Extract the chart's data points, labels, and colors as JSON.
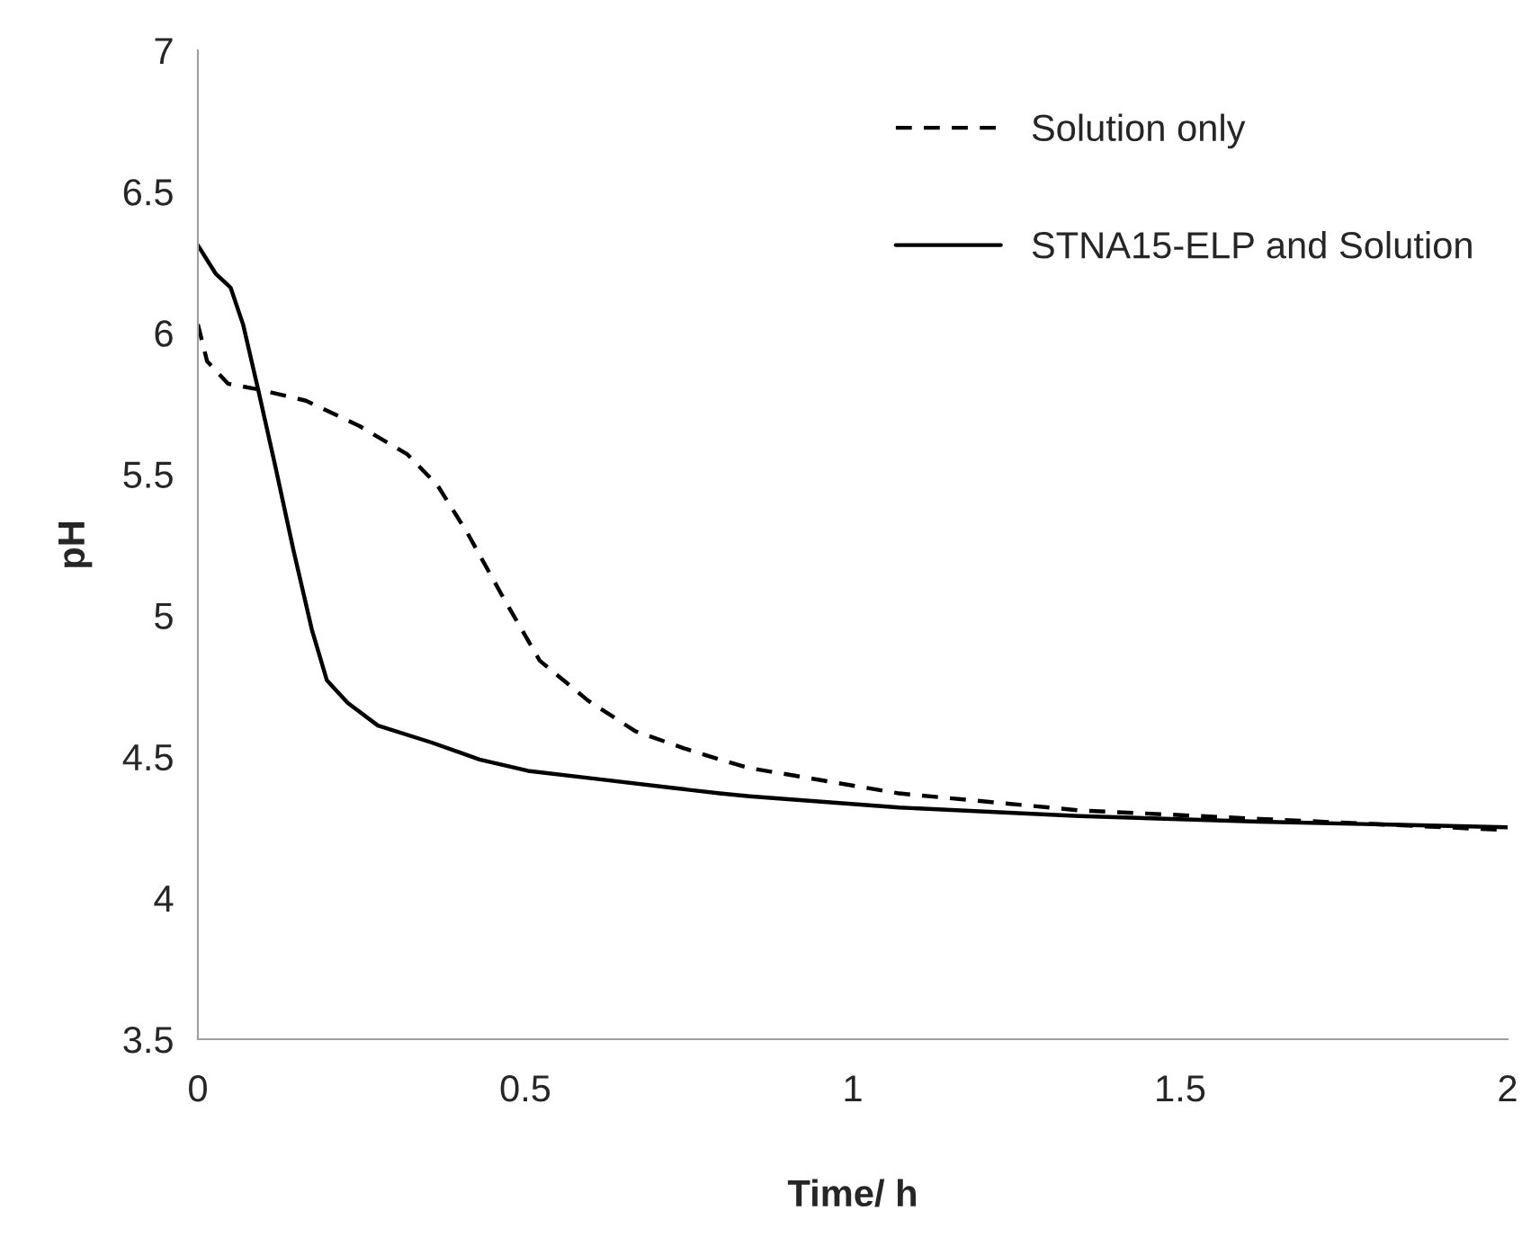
{
  "chart_data": {
    "type": "line",
    "xlabel": "Time/ h",
    "ylabel": "pH",
    "xlim": [
      0,
      2
    ],
    "xticks": [
      0,
      0.5,
      1,
      1.5,
      2
    ],
    "ylim": [
      3.5,
      7
    ],
    "yticks": [
      3.5,
      4,
      4.5,
      5,
      5.5,
      6,
      6.5,
      7
    ],
    "grid": false,
    "legend": "top right",
    "series": [
      {
        "name": "Solution only",
        "color": "#000000",
        "line_style": "dashed",
        "x": [
          0,
          0.014,
          0.046,
          0.092,
          0.165,
          0.247,
          0.32,
          0.366,
          0.412,
          0.467,
          0.522,
          0.595,
          0.668,
          0.742,
          0.797,
          0.842,
          1.071,
          1.346,
          1.621,
          2.0
        ],
        "values": [
          6.03,
          5.9,
          5.82,
          5.8,
          5.76,
          5.67,
          5.57,
          5.46,
          5.29,
          5.06,
          4.84,
          4.7,
          4.59,
          4.53,
          4.49,
          4.46,
          4.37,
          4.31,
          4.28,
          4.24
        ]
      },
      {
        "name": "STNA15-ELP and Solution",
        "color": "#000000",
        "line_style": "solid",
        "x": [
          0,
          0.027,
          0.05,
          0.069,
          0.092,
          0.119,
          0.146,
          0.174,
          0.197,
          0.229,
          0.275,
          0.357,
          0.43,
          0.504,
          0.614,
          0.723,
          0.797,
          0.842,
          1.071,
          1.346,
          1.621,
          2.0
        ],
        "values": [
          6.31,
          6.21,
          6.16,
          6.03,
          5.8,
          5.52,
          5.23,
          4.95,
          4.77,
          4.69,
          4.61,
          4.55,
          4.49,
          4.45,
          4.42,
          4.39,
          4.37,
          4.36,
          4.32,
          4.29,
          4.27,
          4.25
        ]
      }
    ]
  }
}
